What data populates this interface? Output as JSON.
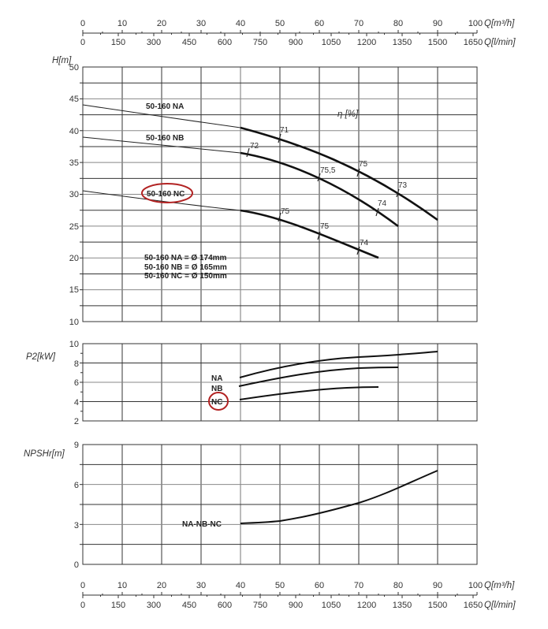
{
  "top_axis": {
    "q_m3h_ticks": [
      "0",
      "10",
      "20",
      "30",
      "40",
      "50",
      "60",
      "70",
      "80",
      "90",
      "100"
    ],
    "q_lmin_ticks": [
      "0",
      "150",
      "300",
      "450",
      "600",
      "750",
      "900",
      "1050",
      "1200",
      "1350",
      "1500",
      "1650"
    ],
    "q_m3h_unit": "Q[m³/h]",
    "q_lmin_unit": "Q[l/min]"
  },
  "bottom_axis": {
    "q_m3h_ticks": [
      "0",
      "10",
      "20",
      "30",
      "40",
      "50",
      "60",
      "70",
      "80",
      "90",
      "100"
    ],
    "q_lmin_ticks": [
      "0",
      "150",
      "300",
      "450",
      "600",
      "750",
      "900",
      "1050",
      "1200",
      "1350",
      "1500",
      "1650"
    ],
    "q_m3h_unit": "Q[m³/h]",
    "q_lmin_unit": "Q[l/min]"
  },
  "head_chart": {
    "ylabel": "H[m]",
    "y_ticks": [
      "50",
      "45",
      "40",
      "35",
      "30",
      "25",
      "20",
      "15",
      "10"
    ],
    "eta_title": "η [%]",
    "labels": {
      "na": "50-160 NA",
      "nb": "50-160 NB",
      "nc": "50-160 NC"
    },
    "diameters": [
      "50-160 NA = Ø 174mm",
      "50-160 NB = Ø 165mm",
      "50-160 NC = Ø 150mm"
    ],
    "eta_marks": {
      "na": [
        "71",
        "75",
        "73"
      ],
      "nb": [
        "72",
        "75,5",
        "74"
      ],
      "nc": [
        "75",
        "75",
        "74"
      ]
    },
    "highlight_color": "#b22222"
  },
  "power_chart": {
    "ylabel": "P2[kW]",
    "y_ticks": [
      "10",
      "8",
      "6",
      "4",
      "2"
    ],
    "labels": {
      "na": "NA",
      "nb": "NB",
      "nc": "NC"
    }
  },
  "npsh_chart": {
    "ylabel": "NPSHr[m]",
    "y_ticks": [
      "9",
      "6",
      "3",
      "0"
    ],
    "label": "NA-NB-NC"
  },
  "chart_data": [
    {
      "type": "line",
      "title": "Head curves 50-160",
      "xlabel": "Q[m³/h]",
      "ylabel": "H[m]",
      "xlim": [
        0,
        100
      ],
      "ylim": [
        10,
        50
      ],
      "grid": true,
      "series": [
        {
          "name": "50-160 NA (Ø174mm)",
          "x": [
            0,
            40,
            50,
            60,
            70,
            80,
            90
          ],
          "y": [
            44,
            40.5,
            38.3,
            35.8,
            33,
            29.8,
            26
          ],
          "efficiency_marks": [
            {
              "x": 50,
              "eta": 71
            },
            {
              "x": 70,
              "eta": 75
            },
            {
              "x": 80,
              "eta": 73
            }
          ]
        },
        {
          "name": "50-160 NB (Ø165mm)",
          "x": [
            0,
            40,
            50,
            60,
            70,
            80
          ],
          "y": [
            39,
            36.5,
            35,
            32.5,
            29,
            25
          ],
          "efficiency_marks": [
            {
              "x": 42,
              "eta": 72
            },
            {
              "x": 60,
              "eta": 75.5
            },
            {
              "x": 75,
              "eta": 74
            }
          ]
        },
        {
          "name": "50-160 NC (Ø150mm)",
          "x": [
            0,
            40,
            50,
            60,
            70,
            75
          ],
          "y": [
            30.5,
            27.5,
            26.2,
            23.8,
            21.2,
            20
          ],
          "efficiency_marks": [
            {
              "x": 50,
              "eta": 75
            },
            {
              "x": 60,
              "eta": 75
            },
            {
              "x": 70,
              "eta": 74
            }
          ]
        }
      ]
    },
    {
      "type": "line",
      "title": "Power",
      "xlabel": "Q[m³/h]",
      "ylabel": "P2[kW]",
      "xlim": [
        0,
        100
      ],
      "ylim": [
        2,
        10
      ],
      "grid": true,
      "series": [
        {
          "name": "NA",
          "x": [
            40,
            50,
            60,
            70,
            80,
            90
          ],
          "y": [
            6.5,
            7.6,
            8.2,
            8.6,
            8.8,
            9.2
          ]
        },
        {
          "name": "NB",
          "x": [
            40,
            50,
            60,
            70,
            80
          ],
          "y": [
            5.6,
            6.2,
            6.9,
            7.4,
            7.5
          ]
        },
        {
          "name": "NC",
          "x": [
            40,
            50,
            60,
            70,
            75
          ],
          "y": [
            4.2,
            4.7,
            5.2,
            5.5,
            5.6
          ]
        }
      ]
    },
    {
      "type": "line",
      "title": "NPSHr",
      "xlabel": "Q[m³/h]",
      "ylabel": "NPSHr[m]",
      "xlim": [
        0,
        100
      ],
      "ylim": [
        0,
        9
      ],
      "grid": true,
      "series": [
        {
          "name": "NA-NB-NC",
          "x": [
            40,
            50,
            60,
            70,
            80,
            90
          ],
          "y": [
            3.1,
            3.3,
            4.0,
            4.9,
            5.9,
            7.0
          ]
        }
      ]
    }
  ]
}
